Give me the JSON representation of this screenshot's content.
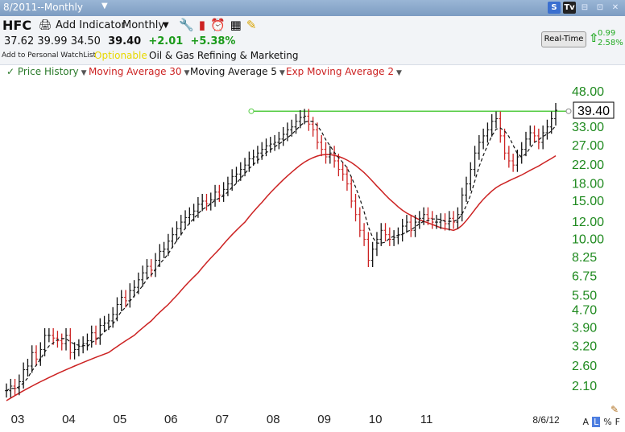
{
  "window": {
    "title": "8/2011--Monthly"
  },
  "titlebar_buttons": [
    "S",
    "Tv",
    "⊟",
    "⊡",
    "✕"
  ],
  "toolbar": {
    "symbol": "HFC",
    "add_indicator": "Add Indicator",
    "period": "Monthly",
    "period_caret": "▼",
    "icons": [
      "tools-icon",
      "bar-chart-icon",
      "alarm-icon",
      "calculator-icon",
      "notes-icon"
    ]
  },
  "quote": {
    "open": "37.62",
    "high": "39.99",
    "low": "34.50",
    "last": "39.40",
    "change": "+2.01",
    "change_pct": "+5.38%",
    "add_watchlist": "Add to Personal WatchList",
    "optionable": "Optionable",
    "industry": "Oil & Gas Refining & Marketing"
  },
  "realtime": {
    "label": "Real-Time",
    "change": "0.99",
    "change_pct": "2.58%"
  },
  "indicators": [
    {
      "label": "Price History",
      "color": "#2a7a2a"
    },
    {
      "label": "Moving Average 30",
      "color": "#cc2222"
    },
    {
      "label": "Moving Average 5",
      "color": "#111111"
    },
    {
      "label": "Exp Moving Average 2",
      "color": "#cc2222"
    }
  ],
  "indicator_caret": "▼",
  "footer": {
    "modes": [
      "A",
      "L",
      "%",
      "F"
    ],
    "selected": "L"
  },
  "colors": {
    "grid_label": "#1f8a1f",
    "ma30": "#cc2222",
    "resistance": "#55cc44",
    "price_box": "#000000"
  },
  "chart_data": {
    "type": "ohlc",
    "scale": "log",
    "ylim": [
      1.8,
      55
    ],
    "y_ticks": [
      "48.00",
      "33.00",
      "27.00",
      "22.00",
      "18.00",
      "15.00",
      "12.00",
      "10.00",
      "8.25",
      "6.75",
      "5.50",
      "4.70",
      "3.90",
      "3.20",
      "2.60",
      "2.10"
    ],
    "x_ticks": [
      "03",
      "04",
      "05",
      "06",
      "07",
      "08",
      "09",
      "10",
      "11"
    ],
    "date_label": "8/6/12",
    "last_price": "39.40",
    "resistance_level": 39.0,
    "start": "2003-01",
    "series": [
      {
        "name": "Price History",
        "close": [
          2.0,
          2.1,
          2.05,
          2.2,
          2.5,
          2.6,
          3.0,
          2.8,
          3.1,
          3.6,
          3.6,
          3.5,
          3.4,
          3.3,
          3.6,
          3.0,
          3.1,
          3.2,
          3.3,
          3.4,
          3.7,
          3.5,
          4.0,
          4.1,
          4.2,
          4.5,
          5.0,
          5.4,
          5.2,
          5.8,
          6.0,
          6.5,
          7.0,
          7.5,
          7.2,
          8.0,
          8.8,
          9.0,
          9.8,
          10.5,
          11.2,
          12.0,
          12.6,
          13.0,
          13.5,
          14.5,
          15.0,
          14.6,
          15.2,
          16.5,
          16.0,
          17.0,
          18.0,
          19.5,
          20.0,
          21.0,
          22.0,
          23.5,
          24.0,
          25.0,
          26.0,
          27.0,
          27.5,
          28.0,
          29.0,
          30.5,
          32.0,
          33.0,
          35.0,
          36.5,
          37.0,
          34.0,
          32.0,
          28.0,
          26.0,
          24.0,
          25.0,
          23.0,
          21.0,
          20.0,
          18.0,
          15.0,
          13.0,
          11.0,
          10.0,
          8.0,
          9.0,
          10.0,
          11.0,
          10.5,
          10.0,
          10.2,
          10.5,
          11.5,
          12.0,
          11.0,
          12.0,
          12.5,
          13.0,
          12.5,
          12.0,
          12.0,
          12.2,
          11.8,
          12.5,
          12.0,
          13.0,
          16.0,
          18.0,
          21.0,
          25.0,
          28.0,
          30.0,
          32.0,
          35.0,
          36.0,
          30.0,
          25.0,
          23.0,
          22.0,
          24.0,
          26.0,
          29.0,
          31.0,
          30.0,
          28.0,
          31.0,
          33.0,
          36.0,
          39.4
        ]
      },
      {
        "name": "Moving Average 30",
        "start_offset": 0,
        "values": [
          1.8,
          1.85,
          1.9,
          1.95,
          2.0,
          2.05,
          2.1,
          2.15,
          2.2,
          2.25,
          2.3,
          2.35,
          2.4,
          2.45,
          2.5,
          2.55,
          2.6,
          2.65,
          2.7,
          2.75,
          2.8,
          2.85,
          2.9,
          2.95,
          3.0,
          3.1,
          3.2,
          3.3,
          3.4,
          3.5,
          3.6,
          3.75,
          3.9,
          4.05,
          4.2,
          4.4,
          4.6,
          4.8,
          5.0,
          5.25,
          5.5,
          5.8,
          6.1,
          6.4,
          6.7,
          7.0,
          7.4,
          7.8,
          8.2,
          8.6,
          9.0,
          9.5,
          10.0,
          10.5,
          11.0,
          11.5,
          12.0,
          12.7,
          13.4,
          14.1,
          14.8,
          15.6,
          16.4,
          17.2,
          18.0,
          18.8,
          19.6,
          20.4,
          21.2,
          22.0,
          22.7,
          23.3,
          23.8,
          24.2,
          24.5,
          24.6,
          24.6,
          24.4,
          24.1,
          23.7,
          23.2,
          22.6,
          21.9,
          21.1,
          20.3,
          19.4,
          18.5,
          17.6,
          16.8,
          16.0,
          15.3,
          14.7,
          14.1,
          13.6,
          13.2,
          12.9,
          12.6,
          12.3,
          12.1,
          11.9,
          11.7,
          11.5,
          11.3,
          11.2,
          11.1,
          11.0,
          11.2,
          11.6,
          12.2,
          12.9,
          13.7,
          14.5,
          15.3,
          16.0,
          16.7,
          17.3,
          17.8,
          18.2,
          18.6,
          19.0,
          19.4,
          19.8,
          20.3,
          20.8,
          21.3,
          21.8,
          22.4,
          23.0,
          23.6,
          24.3
        ]
      }
    ]
  }
}
